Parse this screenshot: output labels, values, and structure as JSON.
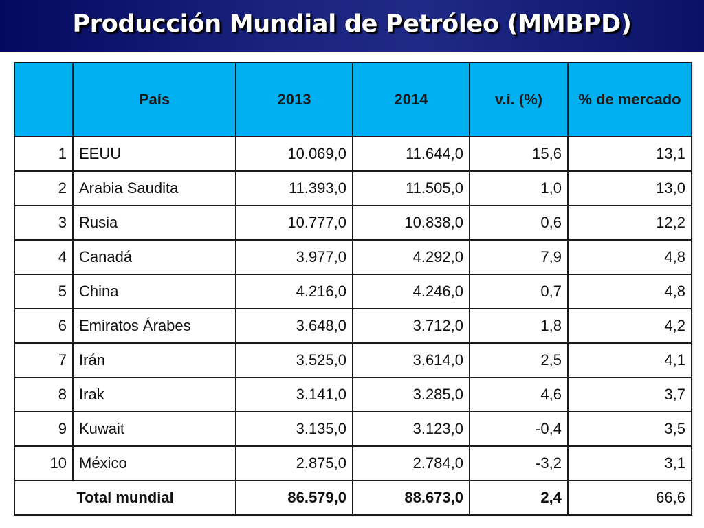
{
  "slide": {
    "title": "Producción Mundial de Petróleo (MMBPD)"
  },
  "table": {
    "headers": {
      "rank": "",
      "country": "País",
      "y2013": "2013",
      "y2014": "2014",
      "vi": "v.i. (%)",
      "share": "% de mercado"
    },
    "rows": [
      {
        "rank": "1",
        "country": "EEUU",
        "y2013": "10.069,0",
        "y2014": "11.644,0",
        "vi": "15,6",
        "share": "13,1"
      },
      {
        "rank": "2",
        "country": "Arabia Saudita",
        "y2013": "11.393,0",
        "y2014": "11.505,0",
        "vi": "1,0",
        "share": "13,0"
      },
      {
        "rank": "3",
        "country": "Rusia",
        "y2013": "10.777,0",
        "y2014": "10.838,0",
        "vi": "0,6",
        "share": "12,2"
      },
      {
        "rank": "4",
        "country": "Canadá",
        "y2013": "3.977,0",
        "y2014": "4.292,0",
        "vi": "7,9",
        "share": "4,8"
      },
      {
        "rank": "5",
        "country": "China",
        "y2013": "4.216,0",
        "y2014": "4.246,0",
        "vi": "0,7",
        "share": "4,8"
      },
      {
        "rank": "6",
        "country": "Emiratos Árabes",
        "y2013": "3.648,0",
        "y2014": "3.712,0",
        "vi": "1,8",
        "share": "4,2"
      },
      {
        "rank": "7",
        "country": "Irán",
        "y2013": "3.525,0",
        "y2014": "3.614,0",
        "vi": "2,5",
        "share": "4,1"
      },
      {
        "rank": "8",
        "country": "Irak",
        "y2013": "3.141,0",
        "y2014": "3.285,0",
        "vi": "4,6",
        "share": "3,7"
      },
      {
        "rank": "9",
        "country": "Kuwait",
        "y2013": "3.135,0",
        "y2014": "3.123,0",
        "vi": "-0,4",
        "share": "3,5"
      },
      {
        "rank": "10",
        "country": "México",
        "y2013": "2.875,0",
        "y2014": "2.784,0",
        "vi": "-3,2",
        "share": "3,1"
      }
    ],
    "total": {
      "label": "Total mundial",
      "y2013": "86.579,0",
      "y2014": "88.673,0",
      "vi": "2,4",
      "share": "66,6"
    }
  },
  "colors": {
    "header_bg": "#00b0f0",
    "title_bar": "#1a237e",
    "title_text": "#ffffff"
  }
}
